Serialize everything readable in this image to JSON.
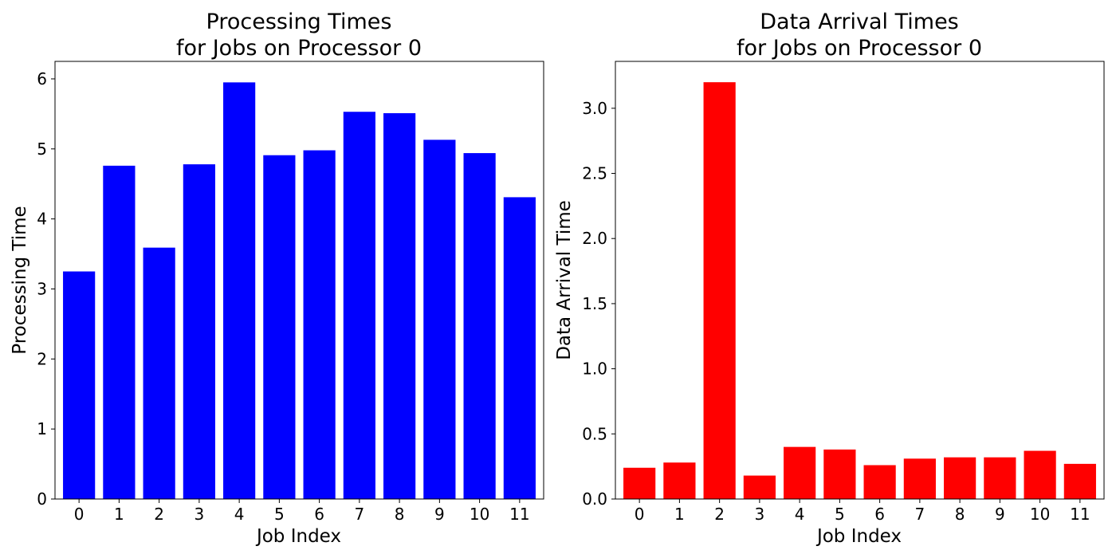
{
  "chart_data": [
    {
      "type": "bar",
      "title_line1": "Processing Times",
      "title_line2": "for Jobs on Processor 0",
      "xlabel": "Job Index",
      "ylabel": "Processing Time",
      "categories": [
        "0",
        "1",
        "2",
        "3",
        "4",
        "5",
        "6",
        "7",
        "8",
        "9",
        "10",
        "11"
      ],
      "values": [
        3.25,
        4.76,
        3.59,
        4.78,
        5.95,
        4.91,
        4.98,
        5.53,
        5.51,
        5.13,
        4.94,
        4.31
      ],
      "ylim": [
        0,
        6.25
      ],
      "yticks": [
        0,
        1,
        2,
        3,
        4,
        5,
        6
      ],
      "ytick_labels": [
        "0",
        "1",
        "2",
        "3",
        "4",
        "5",
        "6"
      ],
      "color": "#0000ff",
      "grid": false
    },
    {
      "type": "bar",
      "title_line1": "Data Arrival Times",
      "title_line2": "for Jobs on Processor 0",
      "xlabel": "Job Index",
      "ylabel": "Data Arrival Time",
      "categories": [
        "0",
        "1",
        "2",
        "3",
        "4",
        "5",
        "6",
        "7",
        "8",
        "9",
        "10",
        "11"
      ],
      "values": [
        0.24,
        0.28,
        3.2,
        0.18,
        0.4,
        0.38,
        0.26,
        0.31,
        0.32,
        0.32,
        0.37,
        0.27
      ],
      "ylim": [
        0,
        3.36
      ],
      "yticks": [
        0,
        0.5,
        1.0,
        1.5,
        2.0,
        2.5,
        3.0
      ],
      "ytick_labels": [
        "0.0",
        "0.5",
        "1.0",
        "1.5",
        "2.0",
        "2.5",
        "3.0"
      ],
      "color": "#ff0000",
      "grid": false
    }
  ]
}
